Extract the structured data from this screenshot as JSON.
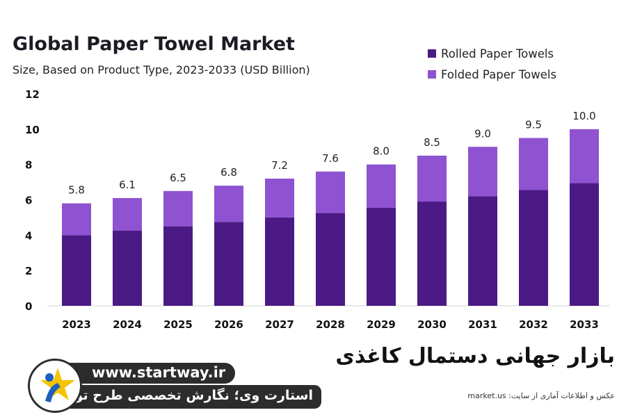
{
  "chart_data": {
    "type": "bar",
    "stacked": true,
    "title": "Global Paper Towel Market",
    "subtitle": "Size, Based on Product Type, 2023-2033 (USD Billion)",
    "categories": [
      "2023",
      "2024",
      "2025",
      "2026",
      "2027",
      "2028",
      "2029",
      "2030",
      "2031",
      "2032",
      "2033"
    ],
    "series": [
      {
        "name": "Rolled Paper Towels",
        "color": "#4b1a85",
        "values": [
          4.0,
          4.25,
          4.5,
          4.75,
          5.0,
          5.25,
          5.55,
          5.9,
          6.2,
          6.55,
          6.95
        ]
      },
      {
        "name": "Folded Paper Towels",
        "color": "#8f52d1",
        "values": [
          1.8,
          1.85,
          2.0,
          2.05,
          2.2,
          2.35,
          2.45,
          2.6,
          2.8,
          2.95,
          3.05
        ]
      }
    ],
    "totals": [
      "5.8",
      "6.1",
      "6.5",
      "6.8",
      "7.2",
      "7.6",
      "8.0",
      "8.5",
      "9.0",
      "9.5",
      "10.0"
    ],
    "ylim": [
      0,
      12
    ],
    "yticks": [
      "0",
      "2",
      "4",
      "6",
      "8",
      "10",
      "12"
    ],
    "grid": false,
    "legend_position": "top-right"
  },
  "overlay": {
    "fa_title": "بازار جهانی دستمال کاغذی",
    "source_text": "عکس و اطلاعات آماری از سایت: market.us",
    "brand_url": "www.startway.ir",
    "brand_tagline": "استارت وی؛ نگارش تخصصی طرح توجیهی"
  }
}
